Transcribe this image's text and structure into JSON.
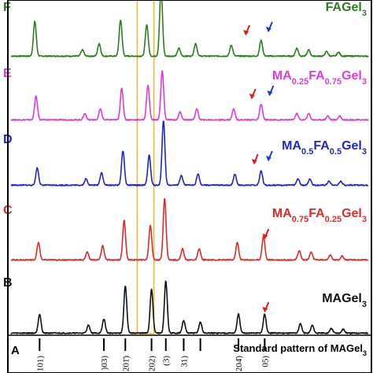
{
  "chart_data": {
    "type": "line",
    "title": "",
    "xlabel": "",
    "ylabel": "",
    "xlim": [
      10,
      40
    ],
    "highlight_band": [
      20.6,
      22.0
    ],
    "highlight_color": "#f2b632",
    "grid": false,
    "legend": "none",
    "panels": [
      {
        "letter": "F",
        "label_text": "FAGel",
        "label_sub": "",
        "label_tail": "3",
        "color": "#2a7f1f",
        "peaks": [
          [
            12.0,
            44
          ],
          [
            16.0,
            8
          ],
          [
            17.4,
            16
          ],
          [
            19.2,
            46
          ],
          [
            21.4,
            40
          ],
          [
            22.6,
            86
          ],
          [
            24.1,
            10
          ],
          [
            25.5,
            16
          ],
          [
            28.5,
            14
          ],
          [
            31.0,
            20
          ],
          [
            34.0,
            10
          ],
          [
            35.0,
            8
          ],
          [
            36.5,
            6
          ],
          [
            37.5,
            5
          ]
        ],
        "arrows": [
          {
            "x": 29.7,
            "color": "#e01b1b"
          },
          {
            "x": 31.6,
            "color": "#1f3bd6"
          }
        ]
      },
      {
        "letter": "E",
        "label_text": "MA",
        "label_sub": "0.25",
        "label_mid": "FA",
        "label_sub2": "0.75",
        "label_tail": "Gel3",
        "color": "#e23ad6",
        "peaks": [
          [
            12.1,
            30
          ],
          [
            16.2,
            8
          ],
          [
            17.5,
            14
          ],
          [
            19.3,
            40
          ],
          [
            21.5,
            44
          ],
          [
            22.7,
            62
          ],
          [
            24.2,
            10
          ],
          [
            25.6,
            14
          ],
          [
            28.7,
            14
          ],
          [
            31.0,
            20
          ],
          [
            34.0,
            8
          ],
          [
            35.0,
            8
          ],
          [
            36.6,
            5
          ],
          [
            37.6,
            5
          ]
        ],
        "arrows": [
          {
            "x": 30.2,
            "color": "#e01b1b"
          },
          {
            "x": 31.7,
            "color": "#1f3bd6"
          }
        ]
      },
      {
        "letter": "D",
        "label_text": "MA",
        "label_sub": "0.5",
        "label_mid": "FA",
        "label_sub2": "0.5",
        "label_tail": "Gel3",
        "color": "#1f27c4",
        "peaks": [
          [
            12.2,
            22
          ],
          [
            16.3,
            8
          ],
          [
            17.6,
            16
          ],
          [
            19.4,
            44
          ],
          [
            21.6,
            38
          ],
          [
            22.8,
            82
          ],
          [
            24.3,
            12
          ],
          [
            25.7,
            14
          ],
          [
            28.8,
            14
          ],
          [
            31.0,
            18
          ],
          [
            34.1,
            8
          ],
          [
            35.1,
            8
          ],
          [
            36.7,
            5
          ],
          [
            37.7,
            5
          ]
        ],
        "arrows": [
          {
            "x": 30.4,
            "color": "#e01b1b"
          },
          {
            "x": 31.6,
            "color": "#1f3bd6"
          }
        ]
      },
      {
        "letter": "C",
        "label_text": "MA",
        "label_sub": "0.75",
        "label_mid": "FA",
        "label_sub2": "0.25",
        "label_tail": "Gel3",
        "color": "#e02a2a",
        "peaks": [
          [
            12.3,
            22
          ],
          [
            16.4,
            10
          ],
          [
            17.7,
            18
          ],
          [
            19.5,
            50
          ],
          [
            21.7,
            44
          ],
          [
            22.9,
            78
          ],
          [
            24.4,
            14
          ],
          [
            25.8,
            14
          ],
          [
            29.0,
            22
          ],
          [
            31.2,
            30
          ],
          [
            34.2,
            12
          ],
          [
            35.2,
            10
          ],
          [
            36.8,
            6
          ],
          [
            37.8,
            5
          ]
        ],
        "arrows": [
          {
            "x": 31.3,
            "color": "#e01b1b"
          }
        ]
      },
      {
        "letter": "B",
        "label_text": "MAGel",
        "label_sub": "",
        "label_tail": "3",
        "color": "#111111",
        "peaks": [
          [
            12.4,
            24
          ],
          [
            16.5,
            10
          ],
          [
            17.8,
            18
          ],
          [
            19.6,
            60
          ],
          [
            21.8,
            56
          ],
          [
            23.0,
            66
          ],
          [
            24.5,
            16
          ],
          [
            25.9,
            14
          ],
          [
            29.1,
            24
          ],
          [
            31.3,
            24
          ],
          [
            34.3,
            12
          ],
          [
            35.3,
            10
          ],
          [
            36.9,
            6
          ],
          [
            37.9,
            5
          ]
        ],
        "arrows": [
          {
            "x": 31.3,
            "color": "#e01b1b"
          }
        ]
      }
    ],
    "standard_pattern": {
      "letter": "A",
      "label": "Standard pattern of MAGel",
      "label_tail": "3",
      "sticks": [
        12.4,
        17.8,
        19.6,
        21.8,
        23.0,
        24.5,
        25.9,
        29.1,
        31.3
      ],
      "tick_labels": [
        {
          "x": 12.4,
          "text": "(101)"
        },
        {
          "x": 17.8,
          "text": ")03)"
        },
        {
          "x": 19.6,
          "text": "(201̄)"
        },
        {
          "x": 21.8,
          "text": "(202)"
        },
        {
          "x": 23.0,
          "text": "(3)"
        },
        {
          "x": 24.5,
          "text": "31)"
        },
        {
          "x": 29.1,
          "text": "(204̄)"
        },
        {
          "x": 31.3,
          "text": "05)"
        }
      ]
    }
  }
}
